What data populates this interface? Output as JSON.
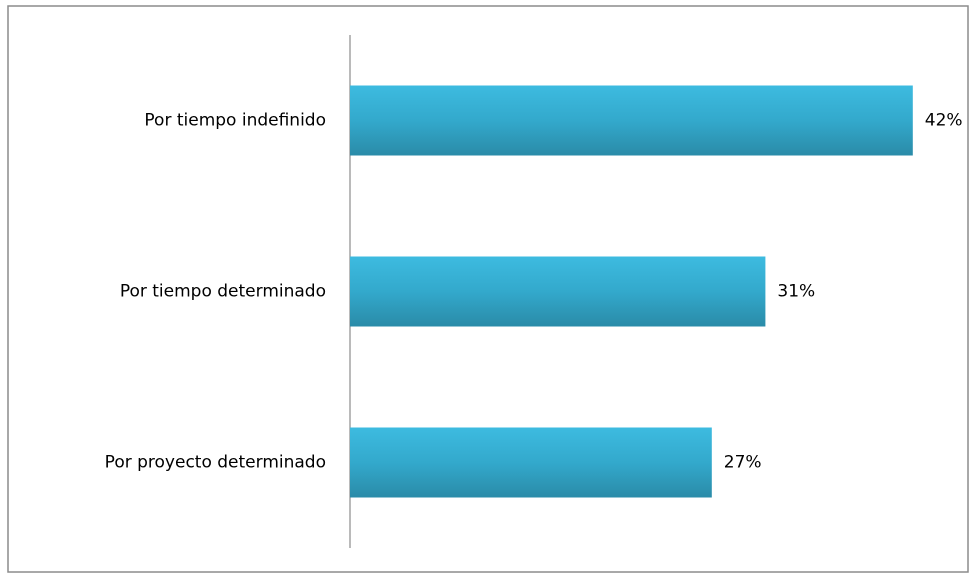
{
  "chart_data": {
    "type": "barh",
    "categories": [
      "Por tiempo indefinido",
      "Por tiempo determinado",
      "Por proyecto determinado"
    ],
    "values": [
      42,
      31,
      27
    ],
    "value_labels": [
      "42%",
      "31%",
      "27%"
    ],
    "color": "#35b1d6"
  }
}
